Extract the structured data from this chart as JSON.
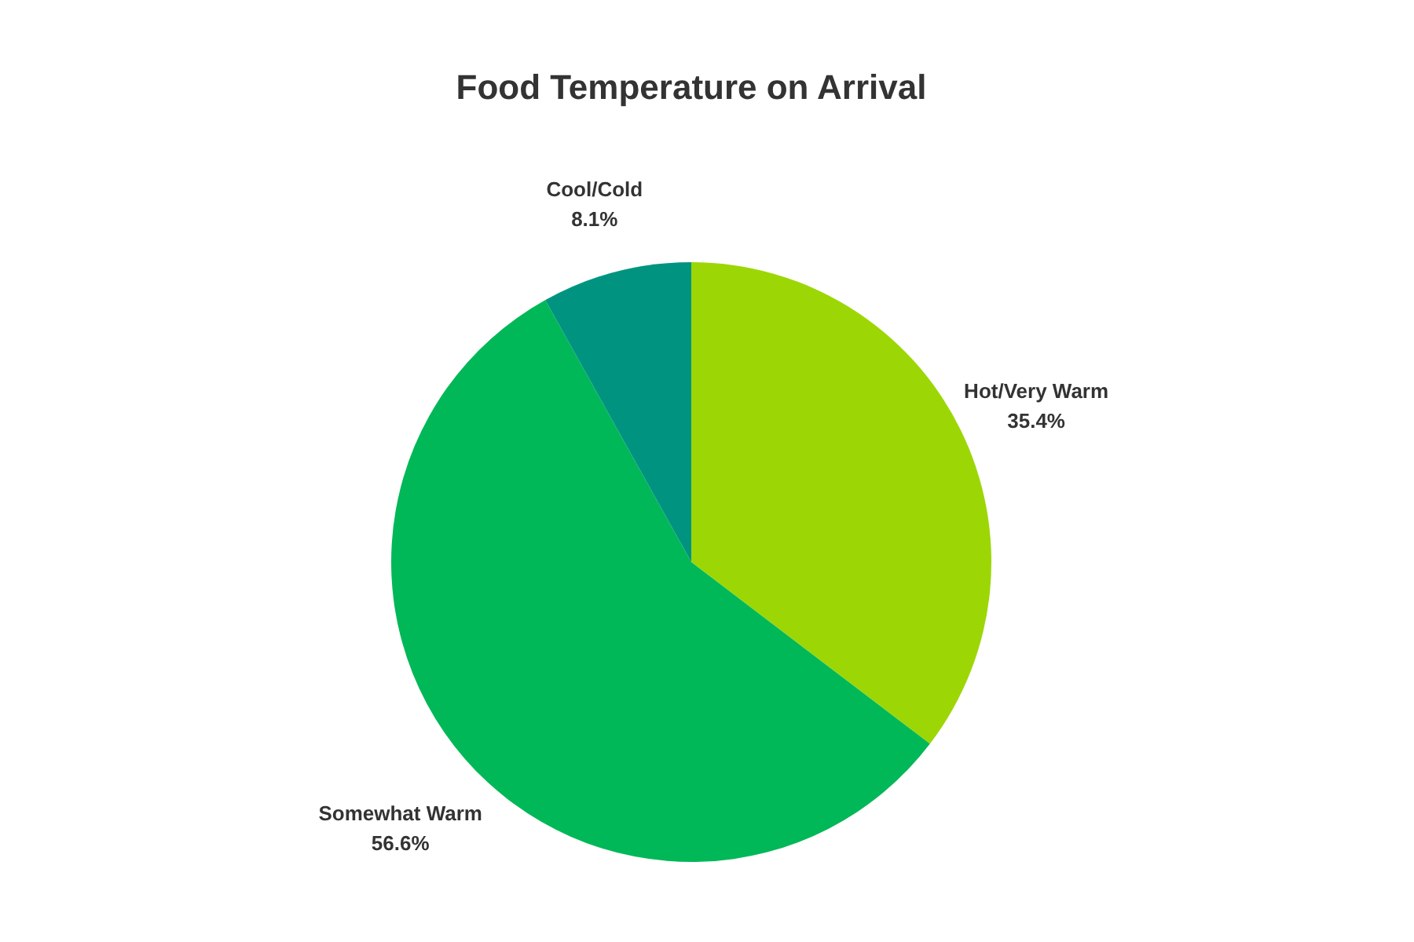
{
  "chart_data": {
    "type": "pie",
    "title": "Food Temperature on Arrival",
    "categories": [
      "Hot/Very Warm",
      "Somewhat Warm",
      "Cool/Cold"
    ],
    "values": [
      35.4,
      56.6,
      8.1
    ],
    "value_labels": [
      "35.4%",
      "56.6%",
      "8.1%"
    ],
    "colors": [
      "#9cd705",
      "#00b857",
      "#009480"
    ],
    "legend": false
  }
}
